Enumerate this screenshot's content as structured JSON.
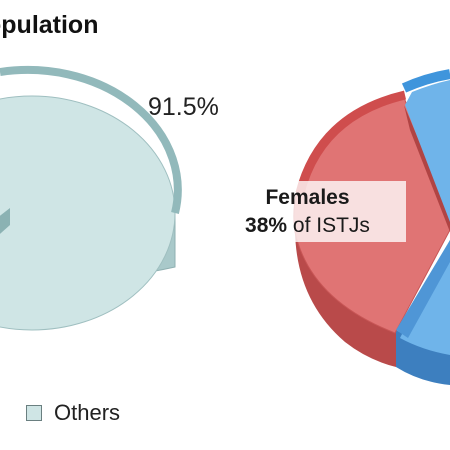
{
  "chart_data": [
    {
      "type": "pie",
      "title": "opulation",
      "slices": [
        {
          "label": "Others",
          "value": 91.5,
          "display": "91.5%",
          "color": "#cfe5e5"
        }
      ],
      "legend": {
        "items": [
          "Others"
        ],
        "placement": "bottom"
      }
    },
    {
      "type": "pie",
      "annotation": {
        "title": "Females",
        "value_text": "38%",
        "suffix": " of ISTJs"
      },
      "slices": [
        {
          "label": "Females",
          "value": 38,
          "color": "#e06b6b"
        },
        {
          "label": "",
          "value": 62,
          "color": "#5ba7e0"
        }
      ]
    }
  ],
  "colors": {
    "others": "#cfe5e5",
    "females": "#e06b6b",
    "males": "#5ba7e0"
  }
}
